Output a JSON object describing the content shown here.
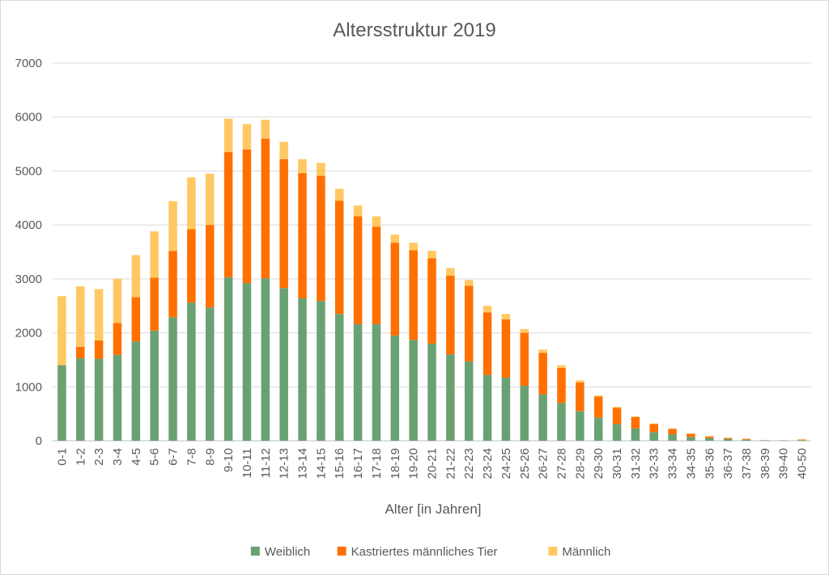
{
  "chart_data": {
    "type": "bar",
    "stacked": true,
    "title": "Altersstruktur 2019",
    "xlabel": "Alter [in Jahren]",
    "ylabel": "",
    "ylim": [
      0,
      7000
    ],
    "yticks": [
      "0",
      "1000",
      "2000",
      "3000",
      "4000",
      "5000",
      "6000",
      "7000"
    ],
    "grid": true,
    "legend_position": "bottom",
    "categories": [
      "0-1",
      "1-2",
      "2-3",
      "3-4",
      "4-5",
      "5-6",
      "6-7",
      "7-8",
      "8-9",
      "9-10",
      "10-11",
      "11-12",
      "12-13",
      "13-14",
      "14-15",
      "15-16",
      "16-17",
      "17-18",
      "18-19",
      "19-20",
      "20-21",
      "21-22",
      "22-23",
      "23-24",
      "24-25",
      "25-26",
      "26-27",
      "27-28",
      "28-29",
      "29-30",
      "30-31",
      "31-32",
      "32-33",
      "33-34",
      "34-35",
      "35-36",
      "36-37",
      "37-38",
      "38-39",
      "39-40",
      "40-50"
    ],
    "series": [
      {
        "name": "Weiblich",
        "color": "#6aa173",
        "values": [
          1400,
          1530,
          1520,
          1590,
          1840,
          2040,
          2290,
          2560,
          2470,
          3030,
          2920,
          3010,
          2830,
          2640,
          2590,
          2350,
          2160,
          2160,
          1950,
          1870,
          1800,
          1600,
          1470,
          1220,
          1170,
          1020,
          860,
          700,
          550,
          430,
          310,
          230,
          160,
          120,
          70,
          50,
          30,
          20,
          10,
          8,
          10
        ]
      },
      {
        "name": "Kastriertes männliches Tier",
        "color": "#ff7000",
        "values": [
          0,
          210,
          340,
          590,
          820,
          980,
          1230,
          1360,
          1530,
          2320,
          2480,
          2590,
          2390,
          2320,
          2320,
          2100,
          2000,
          1810,
          1720,
          1660,
          1580,
          1460,
          1400,
          1160,
          1080,
          980,
          770,
          650,
          530,
          390,
          300,
          210,
          150,
          100,
          60,
          30,
          20,
          15,
          0,
          0,
          10
        ]
      },
      {
        "name": "Männlich",
        "color": "#ffc862",
        "values": [
          1280,
          1120,
          950,
          820,
          780,
          860,
          920,
          960,
          950,
          620,
          470,
          350,
          320,
          260,
          240,
          220,
          200,
          190,
          150,
          140,
          140,
          140,
          110,
          120,
          100,
          70,
          60,
          50,
          40,
          20,
          20,
          10,
          10,
          10,
          5,
          5,
          5,
          5,
          0,
          0,
          10
        ]
      }
    ]
  }
}
